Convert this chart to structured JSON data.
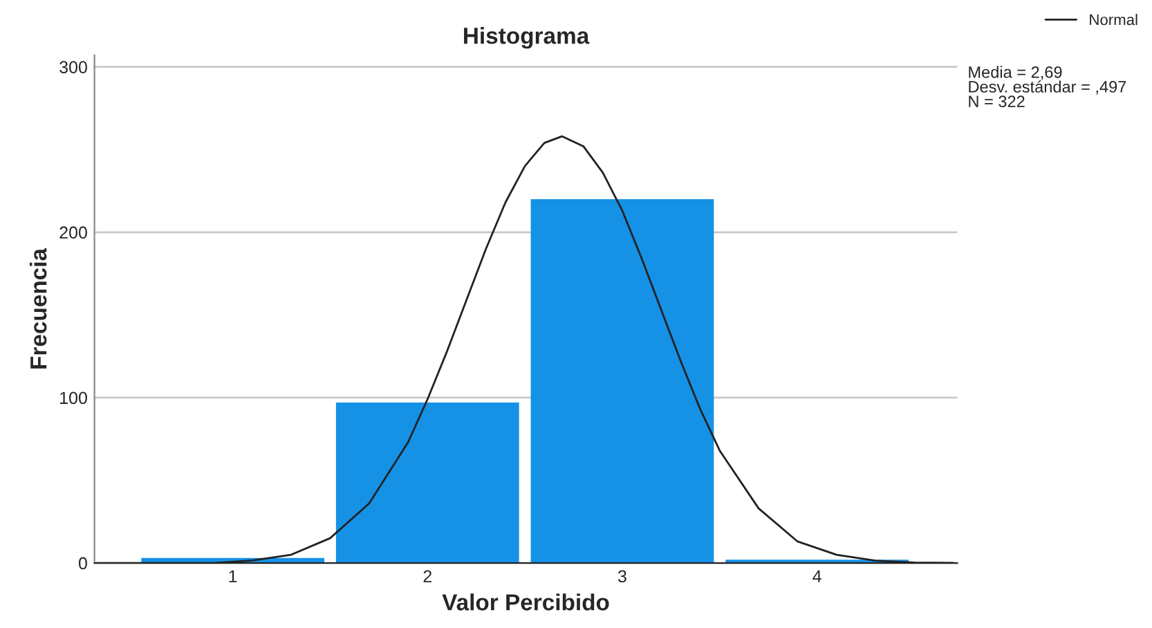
{
  "chart_data": {
    "type": "histogram",
    "title": "Histograma",
    "xlabel": "Valor Percibido",
    "ylabel": "Frecuencia",
    "bins": [
      0.5,
      1.5,
      2.5,
      3.5,
      4.5
    ],
    "values": [
      3,
      97,
      220,
      2
    ],
    "color": "#1591e6",
    "series": [
      {
        "type": "line",
        "name": "Normal",
        "color": "#222222",
        "x": [
          0.3,
          0.5,
          0.7,
          0.9,
          1.1,
          1.3,
          1.5,
          1.7,
          1.9,
          2.0,
          2.1,
          2.2,
          2.3,
          2.4,
          2.5,
          2.6,
          2.69,
          2.8,
          2.9,
          3.0,
          3.1,
          3.2,
          3.3,
          3.4,
          3.5,
          3.7,
          3.9,
          4.1,
          4.3,
          4.5,
          4.7
        ],
        "values": [
          0,
          0,
          0,
          0,
          1.5,
          5,
          15,
          36,
          73,
          99,
          128,
          159,
          190,
          218,
          240,
          254,
          258,
          252,
          236,
          213,
          184,
          153,
          122,
          93,
          68,
          33,
          13,
          5,
          1.4,
          0.3,
          0.1
        ]
      }
    ],
    "annotations": [
      "Media = 2,69\nDesv. estándar = ,497\nN = 322"
    ],
    "xlim": [
      0.29,
      4.72
    ],
    "xticks": [
      1,
      2,
      3,
      4
    ],
    "ylim": [
      0,
      307
    ],
    "yticks": [
      0,
      100,
      200,
      300
    ],
    "grid": "y",
    "legend": "top right",
    "line_style": "solid",
    "marker": "none"
  }
}
